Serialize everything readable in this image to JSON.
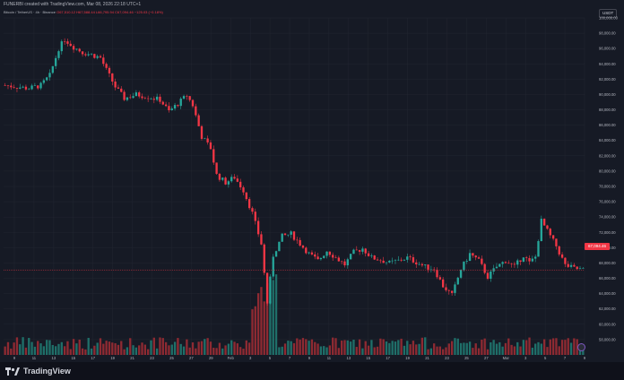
{
  "header": {
    "caption": "FUNERBI created with TradingView.com, Mar 08, 2026 22:18 UTC+1",
    "symbol": "Bitcoin / TetherUS · 4h · Binance",
    "ohlc": "O67,510.12  H67,588.44  L66,795.94  C67,094.46  −125.03 (−0.18%)",
    "currency": "USDT"
  },
  "last_price_label": "67,094.46",
  "footer": {
    "brand": "TradingView"
  },
  "colors": {
    "up": "#26a69a",
    "down": "#f23645",
    "up_vol": "#1f6f69",
    "down_vol": "#8e2a32",
    "grid": "#222631",
    "axis_text": "#b2b5be"
  },
  "chart_data": {
    "type": "candlestick",
    "ylim": [
      56000,
      100000
    ],
    "y_ticks": [
      100000,
      98000,
      96000,
      94000,
      92000,
      90000,
      88000,
      86000,
      84000,
      82000,
      80000,
      78000,
      76000,
      74000,
      72000,
      70000,
      68000,
      66000,
      64000,
      62000,
      60000,
      58000
    ],
    "y_tick_labels": [
      "100,000.00",
      "98,000.00",
      "96,000.00",
      "94,000.00",
      "92,000.00",
      "90,000.00",
      "88,000.00",
      "86,000.00",
      "84,000.00",
      "82,000.00",
      "80,000.00",
      "78,000.00",
      "76,000.00",
      "74,000.00",
      "72,000.00",
      "70,000.00",
      "68,000.00",
      "66,000.00",
      "64,000.00",
      "62,000.00",
      "60,000.00",
      "58,000.00"
    ],
    "x_tick_labels": [
      "9",
      "11",
      "13",
      "15",
      "17",
      "19",
      "21",
      "23",
      "25",
      "27",
      "29",
      "Feb",
      "3",
      "5",
      "7",
      "9",
      "11",
      "13",
      "15",
      "17",
      "19",
      "21",
      "23",
      "25",
      "27",
      "Mar",
      "3",
      "5",
      "7",
      "9"
    ],
    "last_price": 67094.46,
    "anchors": [
      [
        0,
        91200
      ],
      [
        4,
        91000
      ],
      [
        8,
        90800
      ],
      [
        12,
        91200
      ],
      [
        15,
        92500
      ],
      [
        18,
        96000
      ],
      [
        20,
        97200
      ],
      [
        23,
        96200
      ],
      [
        26,
        95500
      ],
      [
        29,
        95200
      ],
      [
        32,
        94800
      ],
      [
        34,
        93200
      ],
      [
        37,
        91000
      ],
      [
        40,
        89500
      ],
      [
        44,
        90000
      ],
      [
        48,
        89700
      ],
      [
        52,
        89300
      ],
      [
        55,
        87800
      ],
      [
        58,
        88800
      ],
      [
        61,
        89900
      ],
      [
        63,
        88600
      ],
      [
        66,
        84500
      ],
      [
        69,
        83000
      ],
      [
        71,
        79500
      ],
      [
        74,
        78500
      ],
      [
        77,
        79200
      ],
      [
        80,
        77500
      ],
      [
        83,
        74500
      ],
      [
        86,
        70500
      ],
      [
        88,
        62800
      ],
      [
        90,
        69000
      ],
      [
        93,
        71500
      ],
      [
        96,
        71800
      ],
      [
        99,
        70500
      ],
      [
        102,
        69200
      ],
      [
        105,
        68300
      ],
      [
        108,
        69600
      ],
      [
        111,
        68700
      ],
      [
        114,
        67800
      ],
      [
        117,
        69400
      ],
      [
        120,
        69900
      ],
      [
        123,
        68700
      ],
      [
        126,
        68400
      ],
      [
        129,
        68000
      ],
      [
        132,
        68300
      ],
      [
        135,
        68700
      ],
      [
        138,
        68100
      ],
      [
        141,
        67500
      ],
      [
        144,
        67200
      ],
      [
        147,
        65000
      ],
      [
        150,
        63800
      ],
      [
        153,
        67200
      ],
      [
        156,
        69200
      ],
      [
        159,
        68300
      ],
      [
        162,
        66200
      ],
      [
        165,
        67500
      ],
      [
        168,
        68300
      ],
      [
        171,
        67500
      ],
      [
        174,
        69000
      ],
      [
        176,
        68000
      ],
      [
        178,
        68800
      ],
      [
        180,
        73500
      ],
      [
        183,
        71500
      ],
      [
        185,
        70200
      ],
      [
        188,
        67700
      ],
      [
        191,
        67300
      ],
      [
        194,
        67094
      ]
    ],
    "candle_count": 195
  }
}
